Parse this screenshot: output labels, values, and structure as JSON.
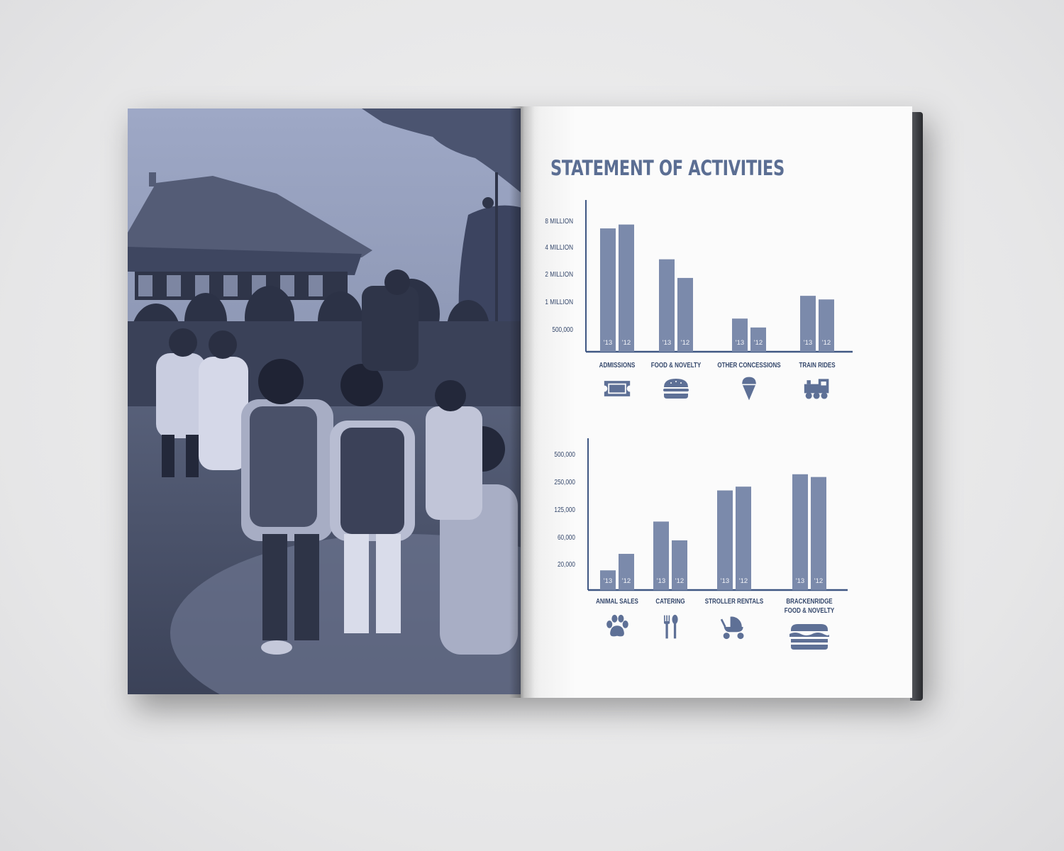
{
  "page_title": "STATEMENT OF ACTIVITIES",
  "colors": {
    "bar": "#7b8aab",
    "axis": "#3f5783",
    "text": "#34476b",
    "title": "#5b6e93",
    "icon": "#5e7096",
    "photo_tint": "#6f7890"
  },
  "chart_data": [
    {
      "type": "bar",
      "title": "",
      "scale": "nonlinear",
      "y_ticks": [
        "8 MILLION",
        "4 MILLION",
        "2 MILLION",
        "1 MILLION",
        "500,000"
      ],
      "series": [
        {
          "name": "'13",
          "values": [
            6500000,
            2900000,
            650000,
            1150000
          ]
        },
        {
          "name": "'12",
          "values": [
            7200000,
            1800000,
            520000,
            1050000
          ]
        }
      ],
      "categories": [
        {
          "label": "ADMISSIONS",
          "icon": "ticket-icon"
        },
        {
          "label": "FOOD & NOVELTY",
          "icon": "hamburger-icon"
        },
        {
          "label": "OTHER CONCESSIONS",
          "icon": "ice-cream-cone-icon"
        },
        {
          "label": "TRAIN RIDES",
          "icon": "train-icon"
        }
      ]
    },
    {
      "type": "bar",
      "title": "",
      "scale": "nonlinear",
      "y_ticks": [
        "500,000",
        "250,000",
        "125,000",
        "60,000",
        "20,000"
      ],
      "series": [
        {
          "name": "'13",
          "values": [
            15000,
            90000,
            200000,
            300000
          ]
        },
        {
          "name": "'12",
          "values": [
            30000,
            52000,
            220000,
            280000
          ]
        }
      ],
      "categories": [
        {
          "label": "ANIMAL SALES",
          "icon": "paw-print-icon"
        },
        {
          "label": "CATERING",
          "icon": "fork-and-spoon-icon"
        },
        {
          "label": "STROLLER RENTALS",
          "icon": "stroller-icon"
        },
        {
          "label": "BRACKENRIDGE FOOD & NOVELTY",
          "icon": "sandwich-icon"
        }
      ]
    }
  ]
}
